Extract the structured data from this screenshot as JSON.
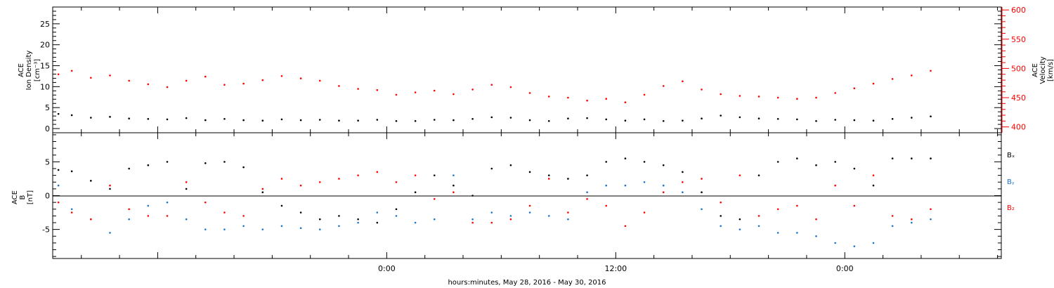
{
  "chart_data": [
    {
      "type": "scatter",
      "ylabel_left": [
        "ACE",
        "Ion Density",
        "[cm⁻³]"
      ],
      "ylabel_right": [
        "ACE",
        "Velocity",
        "[km/s]"
      ],
      "ylim_left": [
        -1,
        29
      ],
      "ylim_right": [
        390,
        605
      ],
      "yticks_left": [
        "0",
        "5",
        "10",
        "15",
        "20",
        "25"
      ],
      "yticks_right": [
        "400",
        "450",
        "500",
        "550",
        "600"
      ],
      "right_axis_color": "#ff0000",
      "xlim_hours": [
        -17.5,
        32.2
      ],
      "series": [
        {
          "color": "#000000",
          "axis": "left",
          "points": [
            [
              -17.2,
              3.5
            ],
            [
              -16.5,
              3.2
            ],
            [
              -15.5,
              2.6
            ],
            [
              -14.5,
              2.8
            ],
            [
              -13.5,
              2.4
            ],
            [
              -12.5,
              2.3
            ],
            [
              -11.5,
              2.2
            ],
            [
              -10.5,
              2.5
            ],
            [
              -9.5,
              2.0
            ],
            [
              -8.5,
              2.3
            ],
            [
              -7.5,
              2.0
            ],
            [
              -6.5,
              1.9
            ],
            [
              -5.5,
              2.2
            ],
            [
              -4.5,
              2.0
            ],
            [
              -3.5,
              2.1
            ],
            [
              -2.5,
              1.9
            ],
            [
              -1.5,
              1.9
            ],
            [
              -0.5,
              2.1
            ],
            [
              0.5,
              1.8
            ],
            [
              1.5,
              1.8
            ],
            [
              2.5,
              2.1
            ],
            [
              3.5,
              2.0
            ],
            [
              4.5,
              2.3
            ],
            [
              5.5,
              2.7
            ],
            [
              6.5,
              2.6
            ],
            [
              7.5,
              2.0
            ],
            [
              8.5,
              1.8
            ],
            [
              9.5,
              2.4
            ],
            [
              10.5,
              2.5
            ],
            [
              11.5,
              2.2
            ],
            [
              12.5,
              1.9
            ],
            [
              13.5,
              2.2
            ],
            [
              14.5,
              1.8
            ],
            [
              15.5,
              1.9
            ],
            [
              16.5,
              2.4
            ],
            [
              17.5,
              3.1
            ],
            [
              18.5,
              2.7
            ],
            [
              19.5,
              2.4
            ],
            [
              20.5,
              2.3
            ],
            [
              21.5,
              2.2
            ],
            [
              22.5,
              1.8
            ],
            [
              23.5,
              2.1
            ],
            [
              24.5,
              2.0
            ],
            [
              25.5,
              1.9
            ],
            [
              26.5,
              2.3
            ],
            [
              27.5,
              2.6
            ],
            [
              28.5,
              2.9
            ]
          ]
        },
        {
          "color": "#ff0000",
          "axis": "right",
          "points": [
            [
              -17.2,
              490
            ],
            [
              -16.5,
              496
            ],
            [
              -15.5,
              484
            ],
            [
              -14.5,
              488
            ],
            [
              -13.5,
              479
            ],
            [
              -12.5,
              473
            ],
            [
              -11.5,
              468
            ],
            [
              -10.5,
              479
            ],
            [
              -9.5,
              486
            ],
            [
              -8.5,
              472
            ],
            [
              -7.5,
              474
            ],
            [
              -6.5,
              480
            ],
            [
              -5.5,
              487
            ],
            [
              -4.5,
              483
            ],
            [
              -3.5,
              479
            ],
            [
              -2.5,
              470
            ],
            [
              -1.5,
              465
            ],
            [
              -0.5,
              463
            ],
            [
              0.5,
              455
            ],
            [
              1.5,
              459
            ],
            [
              2.5,
              462
            ],
            [
              3.5,
              456
            ],
            [
              4.5,
              464
            ],
            [
              5.5,
              472
            ],
            [
              6.5,
              468
            ],
            [
              7.5,
              458
            ],
            [
              8.5,
              452
            ],
            [
              9.5,
              450
            ],
            [
              10.5,
              445
            ],
            [
              11.5,
              448
            ],
            [
              12.5,
              442
            ],
            [
              13.5,
              455
            ],
            [
              14.5,
              470
            ],
            [
              15.5,
              478
            ],
            [
              16.5,
              464
            ],
            [
              17.5,
              456
            ],
            [
              18.5,
              453
            ],
            [
              19.5,
              452
            ],
            [
              20.5,
              450
            ],
            [
              21.5,
              448
            ],
            [
              22.5,
              450
            ],
            [
              23.5,
              458
            ],
            [
              24.5,
              466
            ],
            [
              25.5,
              474
            ],
            [
              26.5,
              482
            ],
            [
              27.5,
              488
            ],
            [
              28.5,
              496
            ]
          ]
        }
      ]
    },
    {
      "type": "scatter",
      "ylabel_left": [
        "ACE",
        "B",
        "[nT]"
      ],
      "ylim": [
        -9.3,
        9.3
      ],
      "yticks": [
        "-5",
        "0",
        "5"
      ],
      "series": [
        {
          "name": "Bx",
          "color": "#000000",
          "points": [
            [
              -17.2,
              3.8
            ],
            [
              -16.5,
              3.6
            ],
            [
              -15.5,
              2.2
            ],
            [
              -14.5,
              1.0
            ],
            [
              -13.5,
              4.0
            ],
            [
              -12.5,
              4.5
            ],
            [
              -11.5,
              5.0
            ],
            [
              -10.5,
              1.0
            ],
            [
              -9.5,
              4.8
            ],
            [
              -8.5,
              5.0
            ],
            [
              -7.5,
              4.2
            ],
            [
              -6.5,
              0.5
            ],
            [
              -5.5,
              -1.5
            ],
            [
              -4.5,
              -2.5
            ],
            [
              -3.5,
              -3.5
            ],
            [
              -2.5,
              -3.0
            ],
            [
              -1.5,
              -3.5
            ],
            [
              -0.5,
              -4.0
            ],
            [
              0.5,
              -2.0
            ],
            [
              1.5,
              0.5
            ],
            [
              2.5,
              3.0
            ],
            [
              3.5,
              1.5
            ],
            [
              4.5,
              0.0
            ],
            [
              5.5,
              4.0
            ],
            [
              6.5,
              4.5
            ],
            [
              7.5,
              3.5
            ],
            [
              8.5,
              3.0
            ],
            [
              9.5,
              2.5
            ],
            [
              10.5,
              3.0
            ],
            [
              11.5,
              5.0
            ],
            [
              12.5,
              5.5
            ],
            [
              13.5,
              5.0
            ],
            [
              14.5,
              4.5
            ],
            [
              15.5,
              3.5
            ],
            [
              16.5,
              0.5
            ],
            [
              17.5,
              -3.0
            ],
            [
              18.5,
              -3.5
            ],
            [
              19.5,
              3.0
            ],
            [
              20.5,
              5.0
            ],
            [
              21.5,
              5.5
            ],
            [
              22.5,
              4.5
            ],
            [
              23.5,
              5.0
            ],
            [
              24.5,
              4.0
            ],
            [
              25.5,
              1.5
            ],
            [
              26.5,
              5.5
            ],
            [
              27.5,
              5.5
            ],
            [
              28.5,
              5.5
            ]
          ]
        },
        {
          "name": "By",
          "color": "#1874cd",
          "points": [
            [
              -17.2,
              1.5
            ],
            [
              -16.5,
              -2.0
            ],
            [
              -15.5,
              -3.5
            ],
            [
              -14.5,
              -5.5
            ],
            [
              -13.5,
              -3.5
            ],
            [
              -12.5,
              -1.5
            ],
            [
              -11.5,
              -1.0
            ],
            [
              -10.5,
              -3.5
            ],
            [
              -9.5,
              -5.0
            ],
            [
              -8.5,
              -5.0
            ],
            [
              -7.5,
              -4.5
            ],
            [
              -6.5,
              -5.0
            ],
            [
              -5.5,
              -4.5
            ],
            [
              -4.5,
              -4.8
            ],
            [
              -3.5,
              -5.0
            ],
            [
              -2.5,
              -4.5
            ],
            [
              -1.5,
              -4.0
            ],
            [
              -0.5,
              -2.5
            ],
            [
              0.5,
              -3.0
            ],
            [
              1.5,
              -4.0
            ],
            [
              2.5,
              -3.5
            ],
            [
              3.5,
              3.0
            ],
            [
              4.5,
              -3.5
            ],
            [
              5.5,
              -2.5
            ],
            [
              6.5,
              -3.0
            ],
            [
              7.5,
              -2.5
            ],
            [
              8.5,
              -3.0
            ],
            [
              9.5,
              -3.5
            ],
            [
              10.5,
              0.5
            ],
            [
              11.5,
              1.5
            ],
            [
              12.5,
              1.5
            ],
            [
              13.5,
              2.0
            ],
            [
              14.5,
              1.5
            ],
            [
              15.5,
              0.5
            ],
            [
              16.5,
              -2.0
            ],
            [
              17.5,
              -4.5
            ],
            [
              18.5,
              -5.0
            ],
            [
              19.5,
              -4.5
            ],
            [
              20.5,
              -5.5
            ],
            [
              21.5,
              -5.5
            ],
            [
              22.5,
              -6.0
            ],
            [
              23.5,
              -7.0
            ],
            [
              24.5,
              -7.5
            ],
            [
              25.5,
              -7.0
            ],
            [
              26.5,
              -4.5
            ],
            [
              27.5,
              -4.0
            ],
            [
              28.5,
              -3.5
            ]
          ]
        },
        {
          "name": "Bz",
          "color": "#ff0000",
          "points": [
            [
              -17.2,
              -1.0
            ],
            [
              -16.5,
              -2.5
            ],
            [
              -15.5,
              -3.5
            ],
            [
              -14.5,
              1.5
            ],
            [
              -13.5,
              -2.0
            ],
            [
              -12.5,
              -3.0
            ],
            [
              -11.5,
              -3.0
            ],
            [
              -10.5,
              2.0
            ],
            [
              -9.5,
              -1.0
            ],
            [
              -8.5,
              -2.5
            ],
            [
              -7.5,
              -3.0
            ],
            [
              -6.5,
              1.0
            ],
            [
              -5.5,
              2.5
            ],
            [
              -4.5,
              1.5
            ],
            [
              -3.5,
              2.0
            ],
            [
              -2.5,
              2.5
            ],
            [
              -1.5,
              3.0
            ],
            [
              -0.5,
              3.5
            ],
            [
              0.5,
              2.0
            ],
            [
              1.5,
              3.0
            ],
            [
              2.5,
              -0.5
            ],
            [
              3.5,
              0.5
            ],
            [
              4.5,
              -4.0
            ],
            [
              5.5,
              -4.0
            ],
            [
              6.5,
              -3.5
            ],
            [
              7.5,
              -1.5
            ],
            [
              8.5,
              2.5
            ],
            [
              9.5,
              -2.5
            ],
            [
              10.5,
              -0.5
            ],
            [
              11.5,
              -1.5
            ],
            [
              12.5,
              -4.5
            ],
            [
              13.5,
              -2.5
            ],
            [
              14.5,
              0.5
            ],
            [
              15.5,
              2.0
            ],
            [
              16.5,
              2.5
            ],
            [
              17.5,
              -1.0
            ],
            [
              18.5,
              3.0
            ],
            [
              19.5,
              -3.0
            ],
            [
              20.5,
              -2.0
            ],
            [
              21.5,
              -1.5
            ],
            [
              22.5,
              -3.5
            ],
            [
              23.5,
              1.5
            ],
            [
              24.5,
              -1.5
            ],
            [
              25.5,
              3.0
            ],
            [
              26.5,
              -3.0
            ],
            [
              27.5,
              -3.5
            ],
            [
              28.5,
              -2.0
            ]
          ]
        }
      ],
      "legend": [
        "Bₓ",
        "Bᵧ",
        "B₂"
      ]
    }
  ],
  "xaxis": {
    "tick_labels": [
      {
        "hour": 0,
        "label": "0:00"
      },
      {
        "hour": 12,
        "label": "12:00"
      },
      {
        "hour": 24,
        "label": "0:00"
      }
    ],
    "xlabel": "hours:minutes, May 28, 2016 - May 30, 2016"
  }
}
